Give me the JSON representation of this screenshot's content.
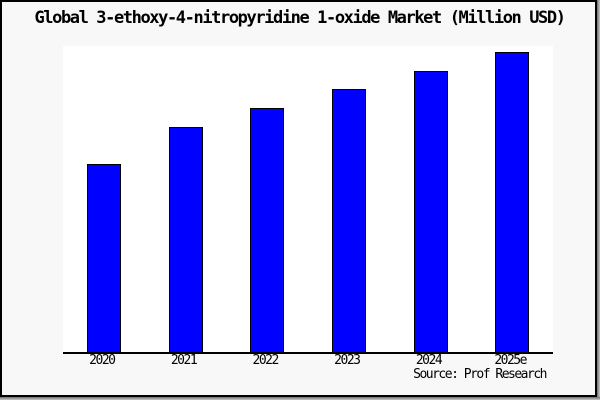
{
  "title": "Global 3-ethoxy-4-nitropyridine 1-oxide Market (Million USD)",
  "source_note": "Source: Prof Research",
  "colors": {
    "bar_fill": "#0000ff",
    "bar_border": "#000000",
    "background": "#f8f8f8",
    "plot_background": "#ffffff",
    "frame_border": "#000000"
  },
  "chart_data": {
    "type": "bar",
    "title": "Global 3-ethoxy-4-nitropyridine 1-oxide Market (Million USD)",
    "xlabel": "",
    "ylabel": "",
    "categories": [
      "2020",
      "2021",
      "2022",
      "2023",
      "2024",
      "2025e"
    ],
    "values": [
      188,
      225,
      244,
      263,
      281,
      300
    ],
    "values_note": "relative units estimated from bar heights; no y-axis or value labels are shown in the image",
    "ylim": [
      0,
      306
    ],
    "grid": false,
    "legend": false,
    "bar_color": "#0000ff",
    "bar_border_color": "#000000",
    "annotations": [
      "Source: Prof Research"
    ]
  }
}
